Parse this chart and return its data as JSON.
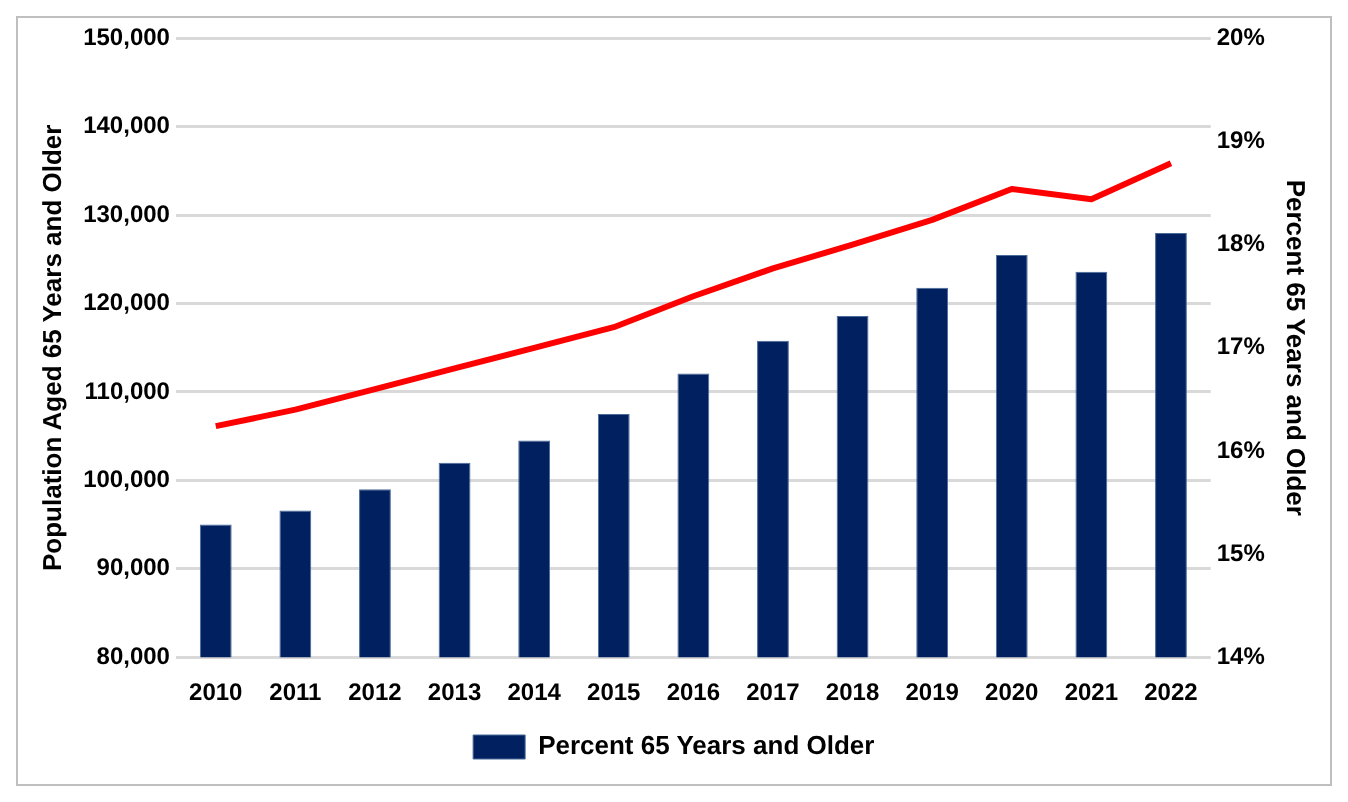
{
  "chart_data": {
    "type": "bar",
    "ylabel": "Population Aged 65 Years and Older",
    "y2label": "Percent 65 Years and Older",
    "categories": [
      "2010",
      "2011",
      "2012",
      "2013",
      "2014",
      "2015",
      "2016",
      "2017",
      "2018",
      "2019",
      "2020",
      "2021",
      "2022"
    ],
    "series": [
      {
        "name": "Percent 65 Years and Older",
        "color": "#002060",
        "values": [
          95000,
          96600,
          99000,
          102000,
          104500,
          107500,
          112100,
          115800,
          118600,
          121800,
          125500,
          123600,
          128000
        ]
      },
      {
        "type": "line",
        "axis": "y2",
        "color": "#ff0000",
        "marker": "none",
        "line_style": "solid",
        "values": [
          16.24,
          16.4,
          16.6,
          16.8,
          17.0,
          17.2,
          17.5,
          17.77,
          18.0,
          18.24,
          18.54,
          18.44,
          18.79
        ]
      }
    ],
    "ylim": [
      80000,
      150000
    ],
    "yticks": [
      {
        "value": 80000,
        "label": "80,000"
      },
      {
        "value": 90000,
        "label": "90,000"
      },
      {
        "value": 100000,
        "label": "100,000"
      },
      {
        "value": 110000,
        "label": "110,000"
      },
      {
        "value": 120000,
        "label": "120,000"
      },
      {
        "value": 130000,
        "label": "130,000"
      },
      {
        "value": 140000,
        "label": "140,000"
      },
      {
        "value": 150000,
        "label": "150,000"
      }
    ],
    "y2lim": [
      14,
      20
    ],
    "y2ticks": [
      {
        "value": 14,
        "label": "14%"
      },
      {
        "value": 15,
        "label": "15%"
      },
      {
        "value": 16,
        "label": "16%"
      },
      {
        "value": 17,
        "label": "17%"
      },
      {
        "value": 18,
        "label": "18%"
      },
      {
        "value": 19,
        "label": "19%"
      },
      {
        "value": 20,
        "label": "20%"
      }
    ],
    "grid": "y",
    "legend": "bottom"
  }
}
